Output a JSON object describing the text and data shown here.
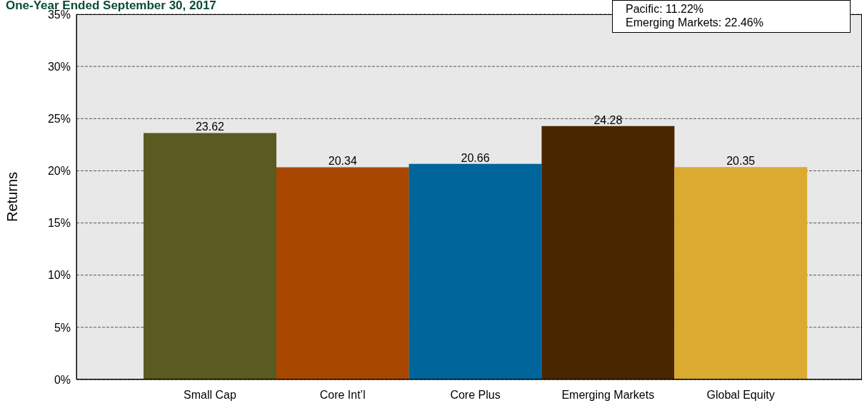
{
  "chart_data": {
    "type": "bar",
    "title": "One-Year Ended September 30, 2017",
    "ylabel": "Returns",
    "categories": [
      "Small Cap",
      "Core Int’l",
      "Core Plus",
      "Emerging Markets",
      "Global Equity"
    ],
    "values": [
      23.62,
      20.34,
      20.66,
      24.28,
      20.35
    ],
    "colors": [
      "#5b5a20",
      "#a84700",
      "#00659a",
      "#4a2600",
      "#dbaa30"
    ],
    "ylim": [
      0,
      35
    ],
    "yticks": [
      {
        "value": 0,
        "label": "0%"
      },
      {
        "value": 5,
        "label": "5%"
      },
      {
        "value": 10,
        "label": "10%"
      },
      {
        "value": 15,
        "label": "15%"
      },
      {
        "value": 20,
        "label": "20%"
      },
      {
        "value": 25,
        "label": "25%"
      },
      {
        "value": 30,
        "label": "30%"
      },
      {
        "value": 35,
        "label": "35%"
      }
    ],
    "grid": "y",
    "data_labels": true,
    "annotations": [
      "Pacific: 11.22%",
      "Emerging Markets: 22.46%"
    ]
  }
}
